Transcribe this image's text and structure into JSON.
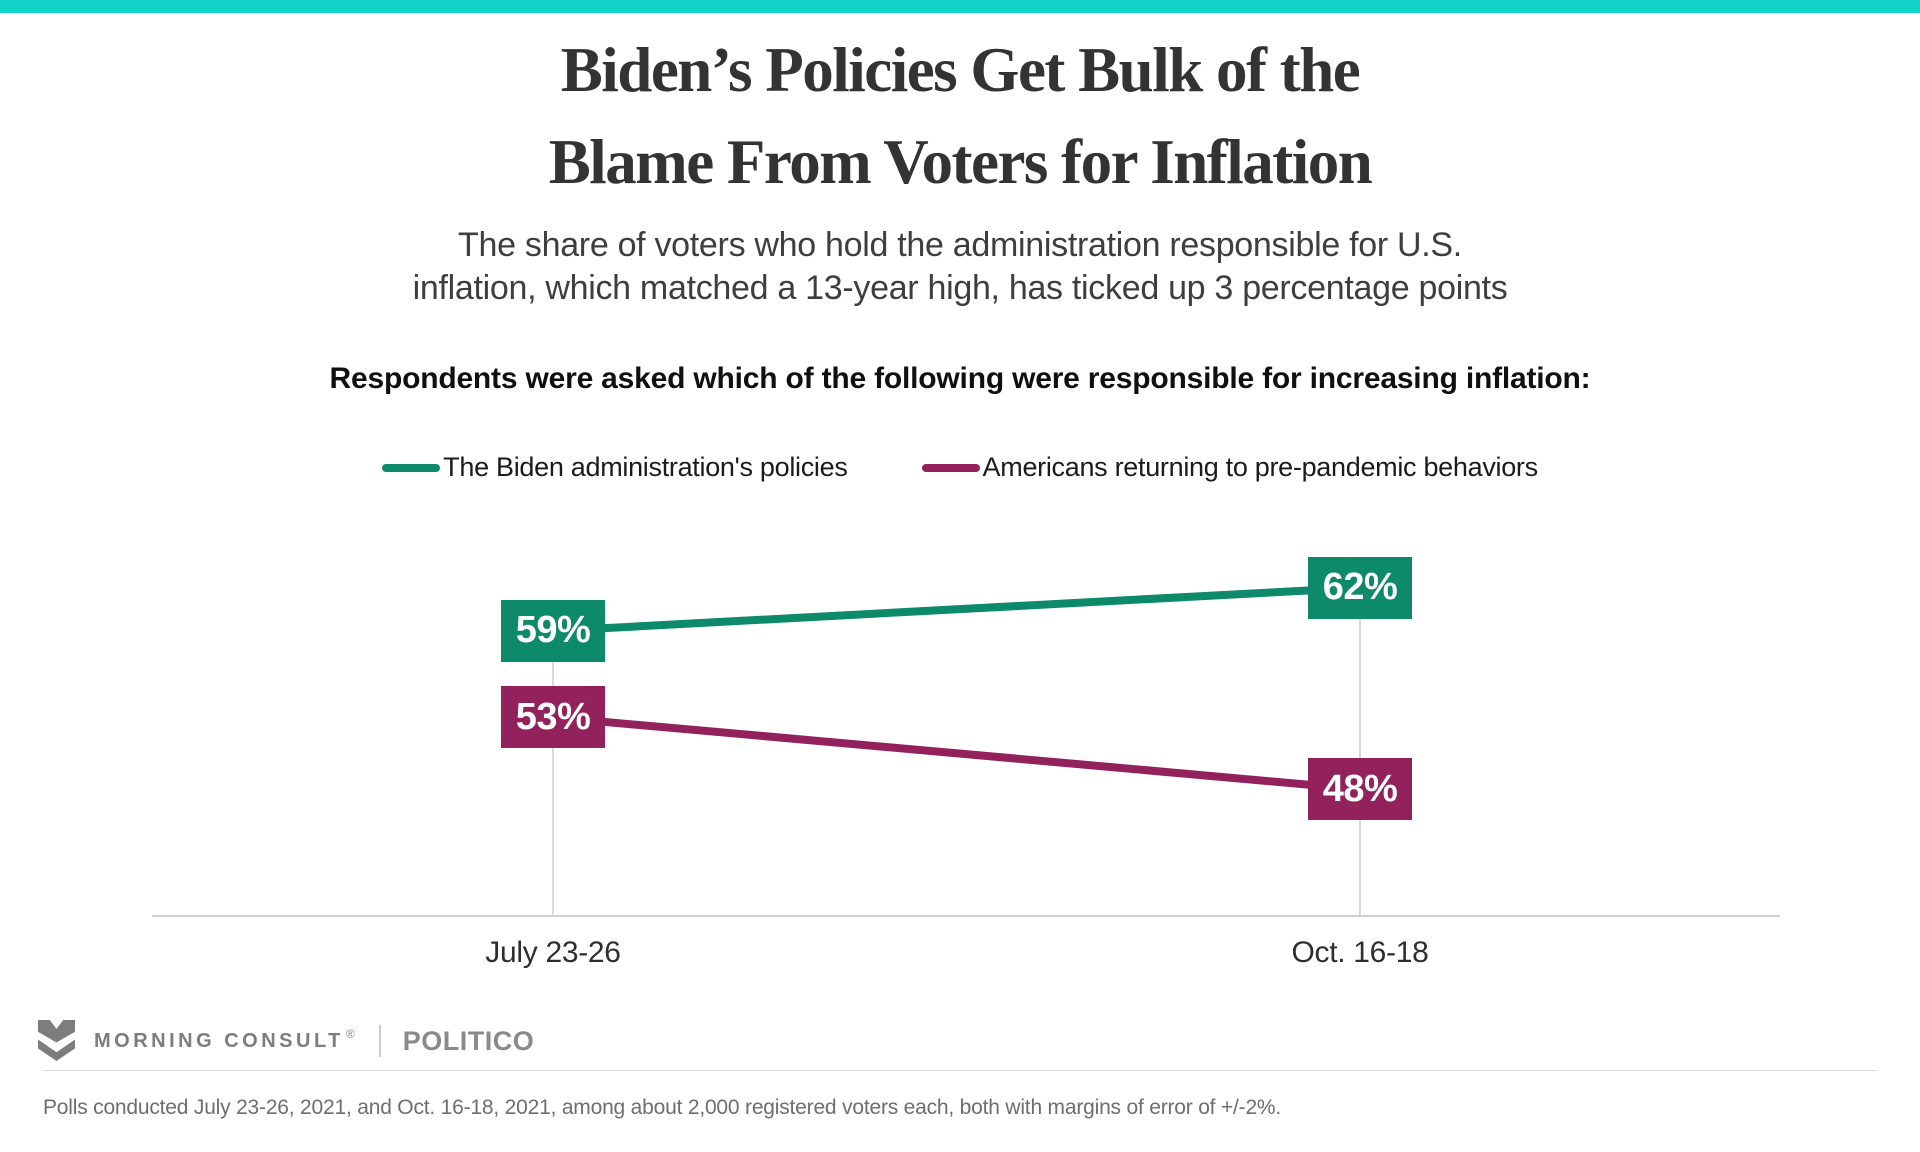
{
  "accent_color": "#0FD4C6",
  "header": {
    "title_line1": "Biden’s Policies Get Bulk of the",
    "title_line2": "Blame From Voters for Inflation",
    "subtitle_line1": "The share of voters who hold the administration responsible for U.S.",
    "subtitle_line2": "inflation, which matched a 13-year high, has ticked up 3 percentage points",
    "prompt": "Respondents were asked which of the following were responsible for increasing inflation:"
  },
  "chart_data": {
    "type": "line",
    "categories": [
      "July 23-26",
      "Oct. 16-18"
    ],
    "series": [
      {
        "name": "The Biden administration's policies",
        "values": [
          59,
          62
        ],
        "color": "#0D8A6A"
      },
      {
        "name": "Americans returning to pre-pandemic behaviors",
        "values": [
          53,
          48
        ],
        "color": "#93215C"
      }
    ],
    "value_suffix": "%",
    "value_label_style": "white text on series-color box",
    "grid": "vertical category gridlines only, light gray",
    "legend_position": "top center"
  },
  "footer": {
    "brand": "MORNING CONSULT",
    "brand_mark": "morning-consult-m-logo",
    "registered_mark": "®",
    "partner": "POLITICO",
    "source_note": "Polls conducted July 23-26, 2021, and Oct. 16-18, 2021, among about 2,000 registered voters each, both with margins of error of +/-2%."
  }
}
